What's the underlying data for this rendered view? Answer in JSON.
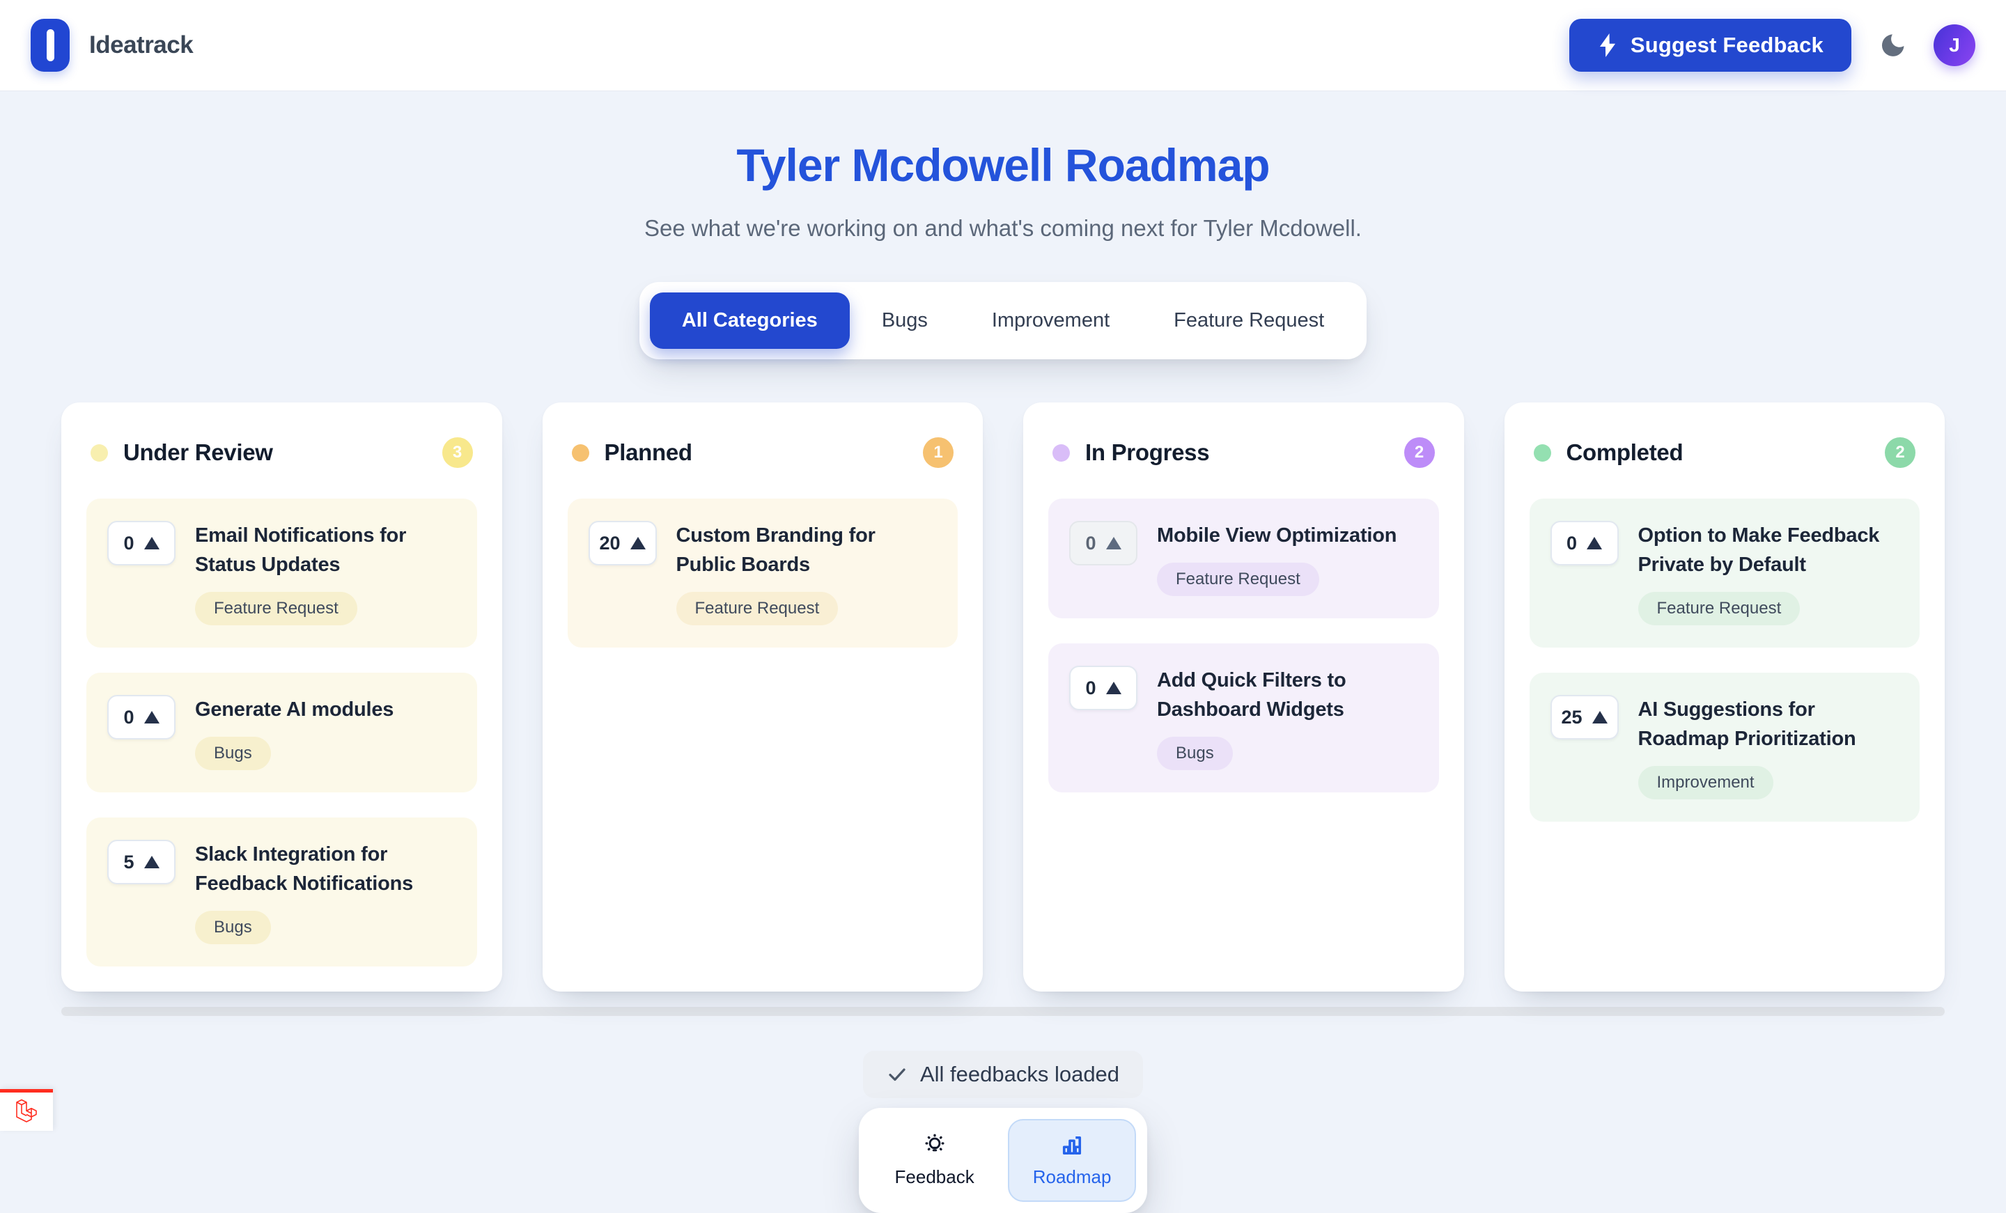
{
  "header": {
    "brand": "Ideatrack",
    "suggest_feedback_label": "Suggest Feedback",
    "avatar_initial": "J"
  },
  "hero": {
    "title": "Tyler Mcdowell Roadmap",
    "subtitle": "See what we're working on and what's coming next for Tyler Mcdowell."
  },
  "filters": {
    "tabs": [
      {
        "label": "All Categories",
        "active": true
      },
      {
        "label": "Bugs",
        "active": false
      },
      {
        "label": "Improvement",
        "active": false
      },
      {
        "label": "Feature Request",
        "active": false
      }
    ]
  },
  "board": {
    "columns": [
      {
        "title": "Under Review",
        "count": "3",
        "dot_color": "#F8EFAF",
        "badge_color": "#F8E88C",
        "card_bg": "#FCF9E9",
        "tag_bg": "#F7F0CE",
        "cards": [
          {
            "votes": "0",
            "title": "Email Notifications for Status Updates",
            "tag": "Feature Request",
            "disabled": false
          },
          {
            "votes": "0",
            "title": "Generate AI modules",
            "tag": "Bugs",
            "disabled": false
          },
          {
            "votes": "5",
            "title": "Slack Integration for Feedback Notifications",
            "tag": "Bugs",
            "disabled": false
          }
        ]
      },
      {
        "title": "Planned",
        "count": "1",
        "dot_color": "#F6C170",
        "badge_color": "#F6C170",
        "card_bg": "#FDF8EA",
        "tag_bg": "#F9EFD4",
        "cards": [
          {
            "votes": "20",
            "title": "Custom Branding for Public Boards",
            "tag": "Feature Request",
            "disabled": false
          }
        ]
      },
      {
        "title": "In Progress",
        "count": "2",
        "dot_color": "#D9BDF8",
        "badge_color": "#BD8CF8",
        "card_bg": "#F5F0FB",
        "tag_bg": "#EBE1F8",
        "cards": [
          {
            "votes": "0",
            "title": "Mobile View Optimization",
            "tag": "Feature Request",
            "disabled": true
          },
          {
            "votes": "0",
            "title": "Add Quick Filters to Dashboard Widgets",
            "tag": "Bugs",
            "disabled": false
          }
        ]
      },
      {
        "title": "Completed",
        "count": "2",
        "dot_color": "#94E0B1",
        "badge_color": "#8CD9A9",
        "card_bg": "#F0F8F2",
        "tag_bg": "#E0F1E4",
        "cards": [
          {
            "votes": "0",
            "title": "Option to Make Feedback Private by Default",
            "tag": "Feature Request",
            "disabled": false
          },
          {
            "votes": "25",
            "title": "AI Suggestions for Roadmap Prioritization",
            "tag": "Improvement",
            "disabled": false
          }
        ]
      }
    ]
  },
  "footer": {
    "loaded_text": "All feedbacks loaded",
    "nav": [
      {
        "label": "Feedback",
        "icon": "lightbulb-icon",
        "active": false
      },
      {
        "label": "Roadmap",
        "icon": "bar-chart-icon",
        "active": true
      }
    ]
  },
  "colors": {
    "accent_blue": "#2348CF",
    "title_blue": "#2453DB",
    "page_bg": "#EFF3FA",
    "laravel_red": "#FF2D20"
  }
}
